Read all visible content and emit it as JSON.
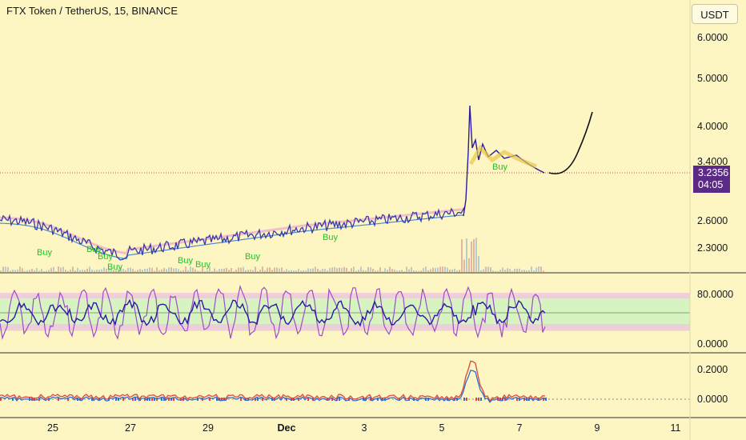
{
  "header": {
    "title": "FTX Token / TetherUS, 15, BINANCE",
    "currency_button": "USDT"
  },
  "price_axis": {
    "labels": [
      "6.0000",
      "5.0000",
      "4.0000",
      "3.4000",
      "2.6000",
      "2.3000"
    ]
  },
  "last_price": {
    "value": "3.2356",
    "countdown": "04:05"
  },
  "oscillator_axis": {
    "labels": [
      "80.0000",
      "0.0000"
    ]
  },
  "momentum_axis": {
    "labels": [
      "0.2000",
      "0.0000"
    ]
  },
  "time_axis": {
    "labels": [
      "25",
      "27",
      "29",
      "Dec",
      "3",
      "5",
      "7",
      "9",
      "11"
    ]
  },
  "signals": {
    "label": "Buy"
  },
  "colors": {
    "background": "#fdf6c2",
    "price_line": "#3a3aa8",
    "buy_signal": "#22c32a",
    "last_price_tag": "#5b2a86",
    "oscillator_fast": "#9b4dc8",
    "oscillator_slow": "#2a1aa0",
    "band_fill": "#d8f3c2",
    "projection": "#111111",
    "momentum_red": "#e0443a",
    "momentum_blue": "#2f6fd6"
  }
}
